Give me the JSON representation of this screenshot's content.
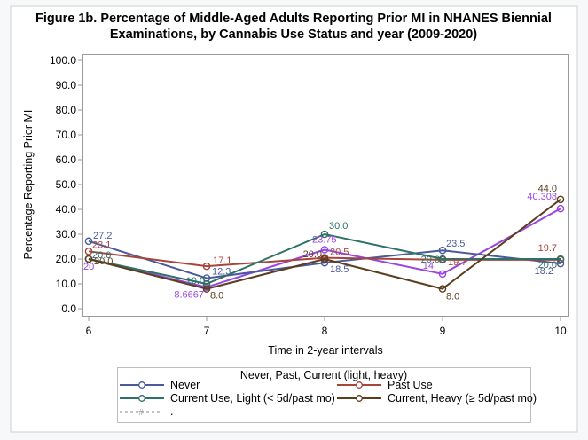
{
  "chart_data": {
    "type": "line",
    "title_lines": [
      "Figure 1b. Percentage of Middle-Aged Adults Reporting Prior MI in NHANES Biennial",
      "Examinations, by Cannabis Use Status and year (2009-2020)"
    ],
    "xlabel": "Time in 2-year intervals",
    "ylabel": "Percentage Reporting Prior MI",
    "x": [
      6,
      7,
      8,
      9,
      10
    ],
    "xticks": [
      "6",
      "7",
      "8",
      "9",
      "10"
    ],
    "ylim": [
      0,
      100
    ],
    "yticks": [
      0,
      10,
      20,
      30,
      40,
      50,
      60,
      70,
      80,
      90,
      100
    ],
    "ytick_labels": [
      "0.0",
      "10.0",
      "20.0",
      "30.0",
      "40.0",
      "50.0",
      "60.0",
      "70.0",
      "80.0",
      "90.0",
      "100.0"
    ],
    "grid": false,
    "legend": {
      "title": "Never, Past, Current (light, heavy)",
      "placement": "bottom",
      "entries": [
        {
          "label": "Never",
          "color": "#4a5a9c",
          "style": "solid"
        },
        {
          "label": "Past Use",
          "color": "#a8453a",
          "style": "solid"
        },
        {
          "label": "Current Use, Light (< 5d/past mo)",
          "color": "#2e7167",
          "style": "solid"
        },
        {
          "label": "Current, Heavy (≥ 5d/past mo)",
          "color": "#5b3e1e",
          "style": "solid"
        },
        {
          "label": ".",
          "color": "#a0a0a0",
          "style": "dashed"
        }
      ]
    },
    "series": [
      {
        "name": "Never",
        "color": "#4a5a9c",
        "values": [
          27.2,
          12.3,
          18.5,
          23.5,
          18.2
        ],
        "labels": [
          "27.2",
          "12.3",
          "18.5",
          "23.5",
          "18.2"
        ]
      },
      {
        "name": "Past Use",
        "color": "#a8453a",
        "values": [
          23.1,
          17.1,
          20.5,
          19.7,
          19.7
        ],
        "labels": [
          "23.1",
          "17.1",
          "20.5",
          "19.7",
          "19.7"
        ]
      },
      {
        "name": "Current Use, Light (< 5d/past mo)",
        "color": "#2e7167",
        "values": [
          20.0,
          10.0,
          30.0,
          20.0,
          20.0
        ],
        "labels": [
          "20.0",
          "10.0",
          "30.0",
          "20.0",
          "20.0"
        ]
      },
      {
        "name": "Current, Heavy (≥ 5d/past mo)",
        "color": "#5b3e1e",
        "values": [
          20.0,
          8.0,
          20.0,
          8.0,
          44.0
        ],
        "labels": [
          "20.0",
          "8.0",
          "20.0",
          "8.0",
          "44.0"
        ]
      },
      {
        "name": ".",
        "color": "#9a45e0",
        "values": [
          20,
          8.6667,
          23.75,
          14,
          40.308
        ],
        "labels": [
          "20",
          "8.6667",
          "23.75",
          "14",
          "40.308"
        ]
      }
    ]
  }
}
